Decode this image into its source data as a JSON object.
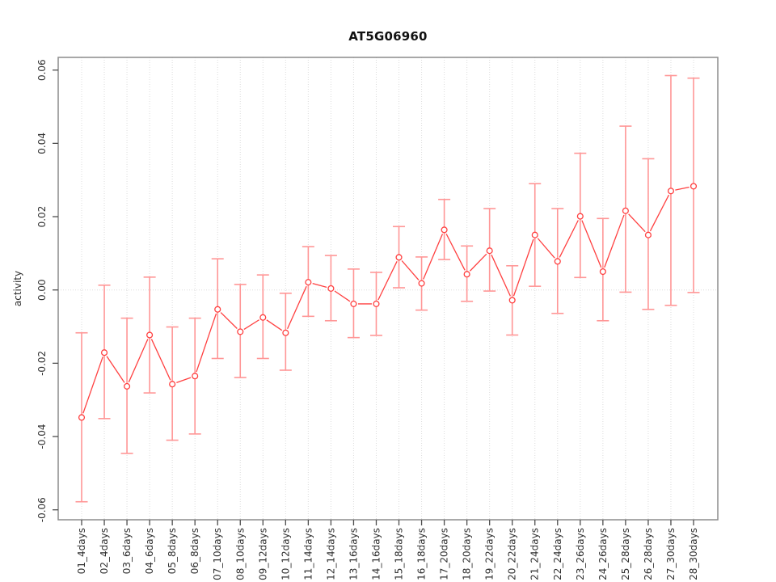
{
  "chart_data": {
    "type": "line",
    "subtype": "points-with-error-bars",
    "title": "AT5G06960",
    "xlabel": "",
    "ylabel": "activity",
    "categories": [
      "01_4days",
      "02_4days",
      "03_6days",
      "04_6days",
      "05_8days",
      "06_8days",
      "07_10days",
      "08_10days",
      "09_12days",
      "10_12days",
      "11_14days",
      "12_14days",
      "13_16days",
      "14_16days",
      "15_18days",
      "16_18days",
      "17_20days",
      "18_20days",
      "19_22days",
      "20_22days",
      "21_24days",
      "22_24days",
      "23_26days",
      "24_26days",
      "25_28days",
      "26_28days",
      "27_30days",
      "28_30days"
    ],
    "series": [
      {
        "name": "activity",
        "values": [
          -0.0348,
          -0.0171,
          -0.0263,
          -0.0123,
          -0.0257,
          -0.0235,
          -0.0053,
          -0.0114,
          -0.0075,
          -0.0117,
          0.0021,
          0.0004,
          -0.0038,
          -0.0038,
          0.0089,
          0.0018,
          0.0164,
          0.0043,
          0.0107,
          -0.0028,
          0.015,
          0.0078,
          0.0201,
          0.005,
          0.0216,
          0.015,
          0.027,
          0.0283
        ],
        "upper": [
          -0.0117,
          0.0013,
          -0.0077,
          0.0035,
          -0.0101,
          -0.0077,
          0.0085,
          0.0015,
          0.0041,
          -0.0009,
          0.0118,
          0.0094,
          0.0057,
          0.0048,
          0.0173,
          0.009,
          0.0247,
          0.012,
          0.0222,
          0.0066,
          0.029,
          0.0222,
          0.0373,
          0.0195,
          0.0447,
          0.0358,
          0.0585,
          0.0578
        ],
        "lower": [
          -0.0578,
          -0.0351,
          -0.0446,
          -0.0281,
          -0.041,
          -0.0393,
          -0.0187,
          -0.0239,
          -0.0187,
          -0.0219,
          -0.0072,
          -0.0084,
          -0.013,
          -0.0124,
          0.0006,
          -0.0055,
          0.0083,
          -0.0031,
          -0.0003,
          -0.0123,
          0.001,
          -0.0064,
          0.0034,
          -0.0084,
          -0.0006,
          -0.0053,
          -0.0042,
          -0.0007
        ]
      }
    ],
    "ylim": [
      -0.0625,
      0.0625
    ],
    "yticks": [
      "-0.06",
      "-0.04",
      "-0.02",
      "0.00",
      "0.02",
      "0.04",
      "0.06"
    ],
    "grid": "vertical-dotted-per-category, dotted zero line",
    "legend": "none",
    "colors": {
      "point_and_line": "#ff4040",
      "error_bar": "#ff9696",
      "grid": "#dcdcdc",
      "box": "#8c8c8c",
      "tick": "#4d4d4d",
      "text": "#303030"
    }
  }
}
